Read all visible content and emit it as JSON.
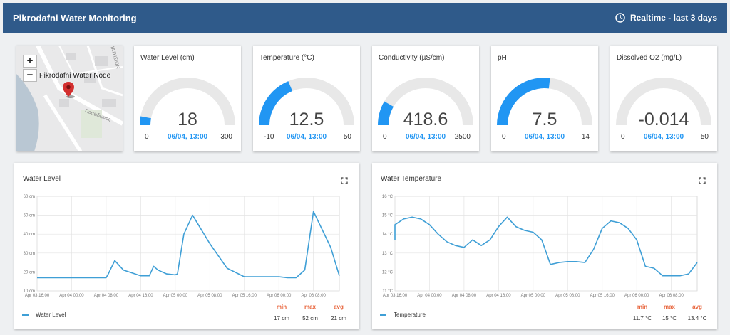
{
  "header": {
    "title": "Pikrodafni Water Monitoring",
    "realtime_label": "Realtime - last 3 days"
  },
  "map": {
    "zoom_in": "+",
    "zoom_out": "−",
    "node_label": "Pikrodafni Water Node",
    "street_labels": [
      "ΠΑΤΗΣΙΩΝ",
      "Ποσειδώνος"
    ]
  },
  "gauges": [
    {
      "title": "Water Level (cm)",
      "value": "18",
      "min": "0",
      "max": "300",
      "timestamp": "06/04, 13:00",
      "fraction": 0.06
    },
    {
      "title": "Temperature (°C)",
      "value": "12.5",
      "min": "-10",
      "max": "50",
      "timestamp": "06/04, 13:00",
      "fraction": 0.375
    },
    {
      "title": "Conductivity (µS/cm)",
      "value": "418.6",
      "min": "0",
      "max": "2500",
      "timestamp": "06/04, 13:00",
      "fraction": 0.167
    },
    {
      "title": "pH",
      "value": "7.5",
      "min": "0",
      "max": "14",
      "timestamp": "06/04, 13:00",
      "fraction": 0.536
    },
    {
      "title": "Dissolved O2 (mg/L)",
      "value": "-0.014",
      "min": "0",
      "max": "50",
      "timestamp": "06/04, 13:00",
      "fraction": 0
    }
  ],
  "colors": {
    "accent": "#2196f3",
    "header": "#2f5a8a",
    "line": "#3f9fd6",
    "stat_header": "#e8643b",
    "gauge_track": "#e8e8e8"
  },
  "charts": {
    "level": {
      "title": "Water Level",
      "legend": "Water Level",
      "stats": {
        "min_label": "min",
        "max_label": "max",
        "avg_label": "avg",
        "min": "17 cm",
        "max": "52 cm",
        "avg": "21 cm"
      }
    },
    "temp": {
      "title": "Water Temperature",
      "legend": "Temperature",
      "stats": {
        "min_label": "min",
        "max_label": "max",
        "avg_label": "avg",
        "min": "11.7 °C",
        "max": "15 °C",
        "avg": "13.4 °C"
      }
    }
  },
  "chart_data": [
    {
      "type": "line",
      "title": "Water Level",
      "ylim": [
        10,
        60
      ],
      "yticks": [
        "10 cm",
        "20 cm",
        "30 cm",
        "40 cm",
        "50 cm",
        "60 cm"
      ],
      "xlim": [
        0,
        70
      ],
      "xtick_values": [
        0,
        8,
        16,
        24,
        32,
        40,
        48,
        56,
        64
      ],
      "xticks": [
        "Apr 03 16:00",
        "Apr 04 00:00",
        "Apr 04 08:00",
        "Apr 04 16:00",
        "Apr 05 00:00",
        "Apr 05 08:00",
        "Apr 05 16:00",
        "Apr 06 00:00",
        "Apr 06 08:00"
      ],
      "grid": true,
      "legend": "bottom-left",
      "series": [
        {
          "name": "Water Level",
          "x": [
            -3,
            0,
            4,
            8,
            12,
            16,
            16.5,
            18,
            20,
            24,
            26,
            27,
            28,
            30,
            32,
            32.5,
            34,
            36,
            40,
            44,
            48,
            52,
            54,
            56,
            58,
            60,
            62,
            64,
            68,
            70
          ],
          "y": [
            17,
            17,
            17,
            17,
            17,
            17,
            19,
            26,
            21,
            18,
            18,
            23,
            21,
            19,
            18.5,
            19,
            40,
            50,
            35,
            22,
            17.5,
            17.5,
            17.5,
            17.5,
            17,
            17,
            21,
            52,
            33,
            18
          ]
        }
      ]
    },
    {
      "type": "line",
      "title": "Water Temperature",
      "ylim": [
        11,
        16
      ],
      "yticks": [
        "11 °C",
        "12 °C",
        "13 °C",
        "14 °C",
        "15 °C",
        "16 °C"
      ],
      "xlim": [
        0,
        70
      ],
      "xtick_values": [
        0,
        8,
        16,
        24,
        32,
        40,
        48,
        56,
        64
      ],
      "xticks": [
        "Apr 03 16:00",
        "Apr 04 00:00",
        "Apr 04 08:00",
        "Apr 04 16:00",
        "Apr 05 00:00",
        "Apr 05 08:00",
        "Apr 05 16:00",
        "Apr 06 00:00",
        "Apr 06 08:00"
      ],
      "grid": true,
      "legend": "bottom-left",
      "series": [
        {
          "name": "Temperature",
          "x": [
            -3,
            0,
            2,
            4,
            6,
            8,
            10,
            12,
            14,
            16,
            18,
            20,
            22,
            24,
            26,
            28,
            30,
            32,
            34,
            36,
            38,
            40,
            42,
            44,
            46,
            48,
            50,
            52,
            54,
            56,
            58,
            60,
            62,
            64,
            66,
            68,
            70
          ],
          "y": [
            13.7,
            14.5,
            14.8,
            14.9,
            14.8,
            14.5,
            14.0,
            13.6,
            13.4,
            13.3,
            13.7,
            13.4,
            13.7,
            14.4,
            14.9,
            14.4,
            14.2,
            14.1,
            13.7,
            12.4,
            12.5,
            12.55,
            12.55,
            12.5,
            13.2,
            14.3,
            14.7,
            14.6,
            14.3,
            13.7,
            12.3,
            12.2,
            11.8,
            11.8,
            11.8,
            11.9,
            12.5
          ]
        }
      ]
    }
  ]
}
